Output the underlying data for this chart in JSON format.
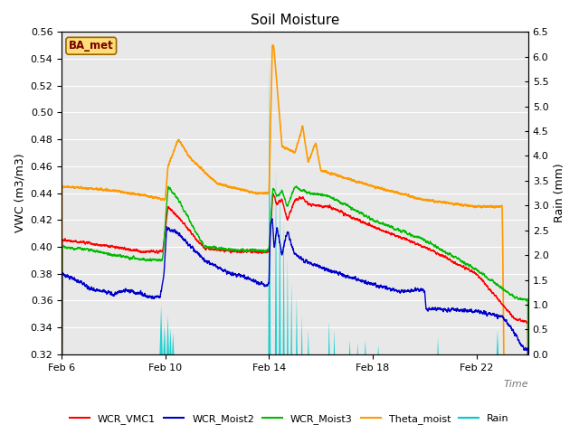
{
  "title": "Soil Moisture",
  "xlabel": "Time",
  "ylabel_left": "VWC (m3/m3)",
  "ylabel_right": "Rain (mm)",
  "ylim_left": [
    0.32,
    0.56
  ],
  "ylim_right": [
    0.0,
    6.5
  ],
  "yticks_left": [
    0.32,
    0.34,
    0.36,
    0.38,
    0.4,
    0.42,
    0.44,
    0.46,
    0.48,
    0.5,
    0.52,
    0.54,
    0.56
  ],
  "yticks_right": [
    0.0,
    0.5,
    1.0,
    1.5,
    2.0,
    2.5,
    3.0,
    3.5,
    4.0,
    4.5,
    5.0,
    5.5,
    6.0,
    6.5
  ],
  "xlim": [
    0,
    18
  ],
  "xtick_positions": [
    0,
    4,
    8,
    12,
    16
  ],
  "xtick_labels": [
    "Feb 6",
    "Feb 10",
    "Feb 14",
    "Feb 18",
    "Feb 22"
  ],
  "station_label": "BA_met",
  "bg_color": "#e8e8e8",
  "legend_entries": [
    "WCR_VMC1",
    "WCR_Moist2",
    "WCR_Moist3",
    "Theta_moist",
    "Rain"
  ],
  "legend_colors": [
    "#ff0000",
    "#0000cc",
    "#00bb00",
    "#ff9900",
    "#00cccc"
  ]
}
